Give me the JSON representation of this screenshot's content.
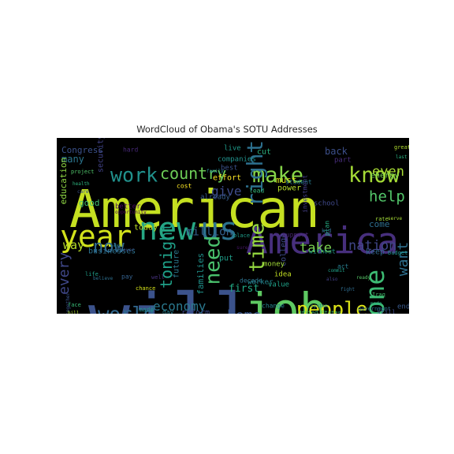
{
  "chart_data": {
    "type": "wordcloud",
    "title": "WordCloud of Obama's SOTU Addresses",
    "background": "#000000",
    "colormap": "viridis",
    "words": [
      {
        "text": "American",
        "color": "#c5e021"
      },
      {
        "text": "will",
        "color": "#3b528b"
      },
      {
        "text": "job",
        "color": "#5ec962"
      },
      {
        "text": "America",
        "color": "#472f7d"
      },
      {
        "text": "year",
        "color": "#d2e21b"
      },
      {
        "text": "new",
        "color": "#26a784"
      },
      {
        "text": "us",
        "color": "#2c728e"
      },
      {
        "text": "make",
        "color": "#86d549"
      },
      {
        "text": "know",
        "color": "#a5db36"
      },
      {
        "text": "work",
        "color": "#21918c"
      },
      {
        "text": "country",
        "color": "#6ece58"
      },
      {
        "text": "people",
        "color": "#dde318"
      },
      {
        "text": "one",
        "color": "#3dbc74"
      },
      {
        "text": "need",
        "color": "#4ac16d"
      },
      {
        "text": "now",
        "color": "#31688e"
      },
      {
        "text": "world",
        "color": "#31688e"
      },
      {
        "text": "time",
        "color": "#95d840"
      },
      {
        "text": "right",
        "color": "#2d708e"
      },
      {
        "text": "tonight",
        "color": "#1fa088"
      },
      {
        "text": "economy",
        "color": "#2a788e"
      },
      {
        "text": "home",
        "color": "#39568c"
      },
      {
        "text": "nation",
        "color": "#404688"
      },
      {
        "text": "help",
        "color": "#52c569"
      },
      {
        "text": "take",
        "color": "#7ad151"
      },
      {
        "text": "want",
        "color": "#2e6f8e"
      },
      {
        "text": "every",
        "color": "#3f4788"
      },
      {
        "text": "give",
        "color": "#3e4c8a"
      },
      {
        "text": "million",
        "color": "#34608d"
      },
      {
        "text": "even",
        "color": "#a8db34"
      },
      {
        "text": "way",
        "color": "#b8de29"
      },
      {
        "text": "first",
        "color": "#22a884"
      },
      {
        "text": "families",
        "color": "#20928c"
      },
      {
        "text": "future",
        "color": "#2a788e"
      },
      {
        "text": "back",
        "color": "#3c4f8a"
      },
      {
        "text": "Congress",
        "color": "#3b518b"
      },
      {
        "text": "many",
        "color": "#2b758e"
      },
      {
        "text": "energy",
        "color": "#75d054"
      },
      {
        "text": "education",
        "color": "#8fd744"
      },
      {
        "text": "must",
        "color": "#d8e219"
      },
      {
        "text": "power",
        "color": "#b5de2b"
      },
      {
        "text": "today",
        "color": "#bddf26"
      },
      {
        "text": "businesses",
        "color": "#2c718e"
      },
      {
        "text": "reform",
        "color": "#3e4989"
      },
      {
        "text": "put",
        "color": "#1f9e89"
      },
      {
        "text": "college",
        "color": "#3e4a89"
      },
      {
        "text": "come",
        "color": "#2e6e8e"
      },
      {
        "text": "good",
        "color": "#42be71"
      },
      {
        "text": "better",
        "color": "#46085c"
      },
      {
        "text": "effort",
        "color": "#fde725"
      },
      {
        "text": "security",
        "color": "#414287"
      },
      {
        "text": "already",
        "color": "#365d8d"
      },
      {
        "text": "companies",
        "color": "#21918c"
      },
      {
        "text": "best",
        "color": "#3b528b"
      },
      {
        "text": "cut",
        "color": "#2ab07f"
      },
      {
        "text": "live",
        "color": "#1e9b8a"
      },
      {
        "text": "student",
        "color": "#287c8e"
      },
      {
        "text": "school",
        "color": "#3f4889"
      },
      {
        "text": "investment",
        "color": "#433e85"
      },
      {
        "text": "support",
        "color": "#482475"
      },
      {
        "text": "idea",
        "color": "#c2df23"
      },
      {
        "text": "decade",
        "color": "#2d718e"
      },
      {
        "text": "change",
        "color": "#25848e"
      },
      {
        "text": "worker",
        "color": "#24868e"
      },
      {
        "text": "money",
        "color": "#a2da37"
      },
      {
        "text": "value",
        "color": "#1fa187"
      },
      {
        "text": "end",
        "color": "#38598c"
      },
      {
        "text": "made",
        "color": "#20928c"
      },
      {
        "text": "day",
        "color": "#277f8e"
      },
      {
        "text": "pay",
        "color": "#34618d"
      },
      {
        "text": "keep",
        "color": "#31688e"
      },
      {
        "text": "without",
        "color": "#1f9a8a"
      },
      {
        "text": "government",
        "color": "#2c728e"
      },
      {
        "text": "budget",
        "color": "#1f958b"
      },
      {
        "text": "plan",
        "color": "#25ac82"
      },
      {
        "text": "lead",
        "color": "#35b779"
      },
      {
        "text": "still",
        "color": "#3e4c8a"
      },
      {
        "text": "kid",
        "color": "#306a8e"
      },
      {
        "text": "system",
        "color": "#23898e"
      },
      {
        "text": "great",
        "color": "#b0dd2f"
      },
      {
        "text": "part",
        "color": "#472c7a"
      },
      {
        "text": "hard",
        "color": "#482979"
      },
      {
        "text": "United States",
        "color": "#3dbc74"
      },
      {
        "text": "place",
        "color": "#1e9c89"
      },
      {
        "text": "chance",
        "color": "#d5e21a"
      },
      {
        "text": "together",
        "color": "#3a548c"
      },
      {
        "text": "act",
        "color": "#287d8e"
      },
      {
        "text": "opportunity",
        "color": "#440154"
      },
      {
        "text": "family",
        "color": "#26828e"
      },
      {
        "text": "last",
        "color": "#29af7f"
      },
      {
        "text": "cost",
        "color": "#fde725"
      },
      {
        "text": "life",
        "color": "#1f9e89"
      },
      {
        "text": "project",
        "color": "#50c46a"
      },
      {
        "text": "rate",
        "color": "#a0da39"
      },
      {
        "text": "face",
        "color": "#38b977"
      },
      {
        "text": "well",
        "color": "#46327e"
      },
      {
        "text": "also",
        "color": "#423f85"
      },
      {
        "text": "sure",
        "color": "#481769"
      },
      {
        "text": "says",
        "color": "#277f8e"
      },
      {
        "text": "fight",
        "color": "#2f6c8e"
      },
      {
        "text": "Iraq",
        "color": "#44bf70"
      },
      {
        "text": "ever",
        "color": "#3c4f8a"
      },
      {
        "text": "made",
        "color": "#27ad81"
      },
      {
        "text": "commit",
        "color": "#1fa088"
      },
      {
        "text": "serve",
        "color": "#a8db34"
      },
      {
        "text": "believe",
        "color": "#2e6f8e"
      },
      {
        "text": "ready",
        "color": "#56c667"
      },
      {
        "text": "health",
        "color": "#2db27d"
      },
      {
        "text": "care",
        "color": "#3b528b"
      },
      {
        "text": "bill",
        "color": "#addc30"
      }
    ]
  }
}
